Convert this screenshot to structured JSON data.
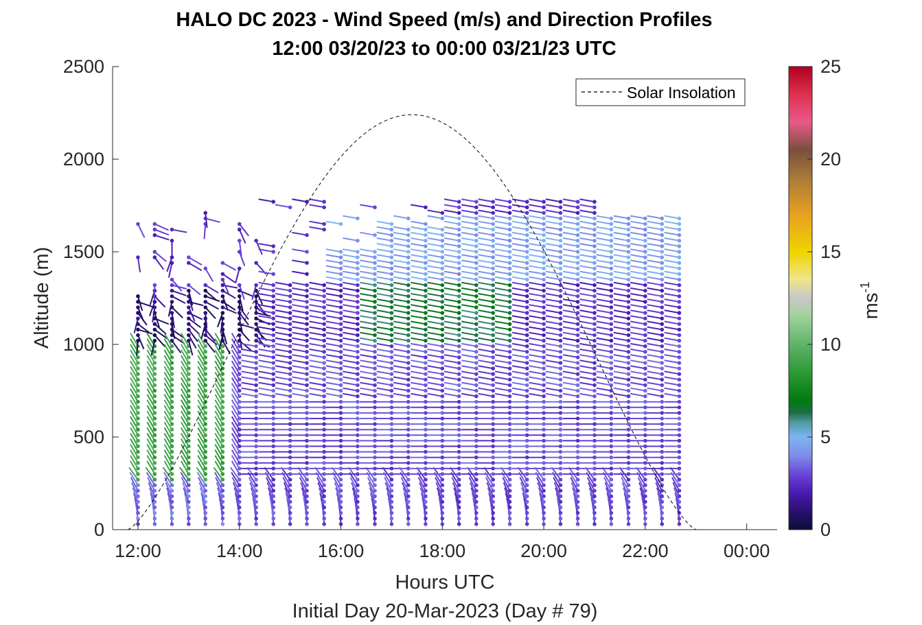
{
  "chart_data": {
    "type": "wind-barb-profile",
    "title_line1": "HALO DC 2023 - Wind Speed (m/s) and Direction Profiles",
    "title_line2": "12:00 03/20/23 to 00:00 03/21/23  UTC",
    "xlabel": "Hours UTC",
    "xlabel2": "Initial Day 20-Mar-2023 (Day # 79)",
    "ylabel": "Altitude (m)",
    "xlim": [
      11.5,
      24.6
    ],
    "ylim": [
      0,
      2500
    ],
    "x_ticks": [
      {
        "value": 12,
        "label": "12:00"
      },
      {
        "value": 14,
        "label": "14:00"
      },
      {
        "value": 16,
        "label": "16:00"
      },
      {
        "value": 18,
        "label": "18:00"
      },
      {
        "value": 20,
        "label": "20:00"
      },
      {
        "value": 22,
        "label": "22:00"
      },
      {
        "value": 24,
        "label": "00:00"
      }
    ],
    "y_ticks": [
      {
        "value": 0,
        "label": "0"
      },
      {
        "value": 500,
        "label": "500"
      },
      {
        "value": 1000,
        "label": "1000"
      },
      {
        "value": 1500,
        "label": "1500"
      },
      {
        "value": 2000,
        "label": "2000"
      },
      {
        "value": 2500,
        "label": "2500"
      }
    ],
    "colorbar": {
      "label": "ms",
      "label_exponent": "-1",
      "range": [
        0,
        25
      ],
      "ticks": [
        {
          "value": 0,
          "label": "0"
        },
        {
          "value": 5,
          "label": "5"
        },
        {
          "value": 10,
          "label": "10"
        },
        {
          "value": 15,
          "label": "15"
        },
        {
          "value": 20,
          "label": "20"
        },
        {
          "value": 25,
          "label": "25"
        }
      ],
      "colors": [
        {
          "v": 0,
          "c": "#0b0f3a"
        },
        {
          "v": 1,
          "c": "#2a1070"
        },
        {
          "v": 2,
          "c": "#4a1ab0"
        },
        {
          "v": 3,
          "c": "#6a46d8"
        },
        {
          "v": 4,
          "c": "#7c8ee8"
        },
        {
          "v": 5,
          "c": "#7fb4f2"
        },
        {
          "v": 5.8,
          "c": "#4f9aa0"
        },
        {
          "v": 6.3,
          "c": "#1e6e46"
        },
        {
          "v": 7,
          "c": "#007a10"
        },
        {
          "v": 8.5,
          "c": "#2e9a36"
        },
        {
          "v": 10,
          "c": "#5fb26a"
        },
        {
          "v": 11.5,
          "c": "#9dd39a"
        },
        {
          "v": 12.5,
          "c": "#c8c8c8"
        },
        {
          "v": 13.5,
          "c": "#efe58a"
        },
        {
          "v": 15,
          "c": "#f0d400"
        },
        {
          "v": 17,
          "c": "#e8a020"
        },
        {
          "v": 19,
          "c": "#a87a3a"
        },
        {
          "v": 20.5,
          "c": "#7a4e3e"
        },
        {
          "v": 22,
          "c": "#e85a8a"
        },
        {
          "v": 23.5,
          "c": "#e03050"
        },
        {
          "v": 25,
          "c": "#b00020"
        }
      ]
    },
    "legend": {
      "entries": [
        "Solar Insolation"
      ],
      "location": "top-right",
      "line_style": "dashed"
    },
    "solar_insolation": {
      "relative": true,
      "start_hour": 11.8,
      "end_hour": 23.0,
      "peak_altitude_on_axis": 2240,
      "flat_ranges": [
        [
          11.7,
          11.9
        ],
        [
          23.0,
          24.5
        ]
      ]
    },
    "profile_times": [
      12.0,
      12.33,
      12.67,
      13.0,
      13.33,
      13.67,
      14.0,
      14.33,
      14.67,
      15.0,
      15.33,
      15.67,
      16.0,
      16.33,
      16.67,
      17.0,
      17.33,
      17.67,
      18.0,
      18.33,
      18.67,
      19.0,
      19.33,
      19.67,
      20.0,
      20.33,
      20.67,
      21.0,
      21.33,
      21.67,
      22.0,
      22.33,
      22.67
    ],
    "altitude_levels": [
      30,
      60,
      90,
      120,
      150,
      180,
      210,
      240,
      270,
      300,
      330,
      360,
      390,
      420,
      450,
      480,
      510,
      540,
      570,
      600,
      630,
      660,
      690,
      720,
      750,
      780,
      810,
      840,
      870,
      900,
      930,
      960,
      990,
      1020,
      1050,
      1080,
      1110,
      1140,
      1170,
      1200,
      1230,
      1260,
      1290,
      1320,
      1350,
      1380,
      1410,
      1440,
      1470,
      1500,
      1530,
      1560,
      1590,
      1620,
      1650,
      1680,
      1710,
      1740,
      1770
    ],
    "speed_regimes": [
      {
        "hour_range": [
          12.0,
          14.0
        ],
        "alt_range": [
          0,
          250
        ],
        "speed_ms": 3.5
      },
      {
        "hour_range": [
          12.0,
          14.0
        ],
        "alt_range": [
          250,
          1000
        ],
        "speed_ms": 9.0
      },
      {
        "hour_range": [
          12.0,
          14.5
        ],
        "alt_range": [
          1000,
          1300
        ],
        "speed_ms": 1.0
      },
      {
        "hour_range": [
          14.0,
          22.7
        ],
        "alt_range": [
          0,
          1000
        ],
        "speed_ms": 3.0
      },
      {
        "hour_range": [
          16.5,
          19.5
        ],
        "alt_range": [
          1000,
          1350
        ],
        "speed_ms": 6.5
      },
      {
        "hour_range": [
          16.0,
          22.7
        ],
        "alt_range": [
          1350,
          1700
        ],
        "speed_ms": 4.5
      }
    ]
  }
}
